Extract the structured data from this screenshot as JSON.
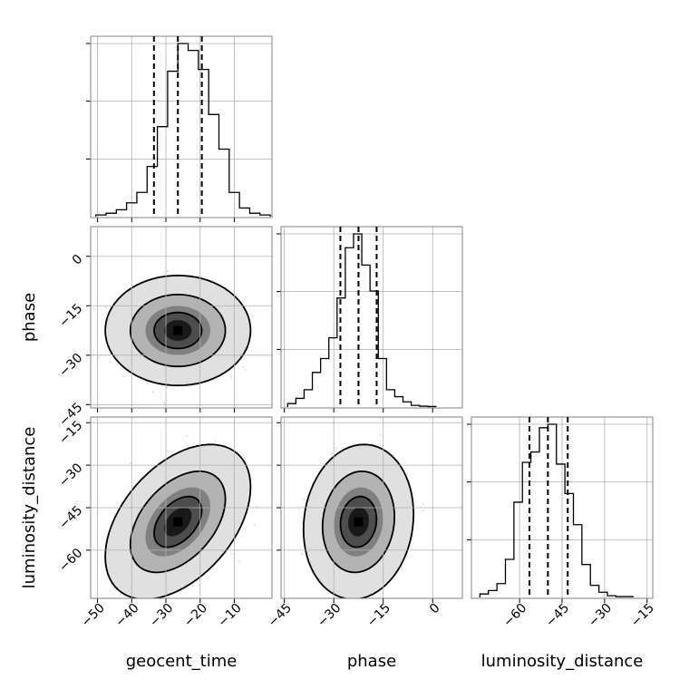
{
  "chart_data": {
    "type": "corner",
    "parameters": [
      {
        "name": "geocent_time",
        "range": [
          -52,
          1
        ],
        "ticks": [
          -50,
          -40,
          -30,
          -20,
          -10
        ],
        "tick_labels": [
          "−50",
          "−40",
          "−30",
          "−20",
          "−10"
        ],
        "quantiles": [
          -33.5,
          -26.5,
          -19.5
        ],
        "hist_bins": [
          -50.5,
          -47.5,
          -44.5,
          -41.5,
          -38.5,
          -35.5,
          -32.5,
          -29.5,
          -26.5,
          -23.5,
          -20.5,
          -17.5,
          -14.5,
          -11.5,
          -8.5,
          -5.5,
          -2.5
        ],
        "hist_counts": [
          0.01,
          0.02,
          0.04,
          0.08,
          0.14,
          0.29,
          0.52,
          0.84,
          1.0,
          0.96,
          0.85,
          0.59,
          0.39,
          0.14,
          0.05,
          0.02,
          0.01
        ]
      },
      {
        "name": "phase",
        "range": [
          -46,
          9
        ],
        "ticks": [
          -45,
          -30,
          -15,
          0
        ],
        "tick_labels": [
          "−45",
          "−30",
          "−15",
          "0"
        ],
        "quantiles": [
          -28,
          -22.5,
          -17
        ],
        "hist_bins": [
          -44,
          -41.5,
          -39,
          -36.5,
          -34,
          -31.5,
          -29,
          -26.5,
          -24,
          -21.5,
          -19,
          -16.5,
          -14,
          -11.5,
          -9,
          -6.5,
          -4,
          -1.5
        ],
        "hist_counts": [
          0.02,
          0.05,
          0.1,
          0.2,
          0.28,
          0.4,
          0.63,
          0.92,
          1.0,
          0.82,
          0.67,
          0.28,
          0.1,
          0.06,
          0.03,
          0.01,
          0.005,
          0.003
        ]
      },
      {
        "name": "luminosity_distance",
        "range": [
          -77,
          -13
        ],
        "ticks": [
          -60,
          -45,
          -30,
          -15
        ],
        "tick_labels": [
          "−60",
          "−45",
          "−30",
          "−15"
        ],
        "quantiles": [
          -56.5,
          -50,
          -43
        ],
        "hist_bins": [
          -74,
          -71,
          -68,
          -65,
          -62,
          -59,
          -56,
          -53,
          -50,
          -47,
          -44,
          -41,
          -38,
          -35,
          -32,
          -29,
          -26,
          -23
        ],
        "hist_counts": [
          0.02,
          0.04,
          0.08,
          0.22,
          0.55,
          0.78,
          0.84,
          0.98,
          1.0,
          0.77,
          0.6,
          0.42,
          0.19,
          0.07,
          0.03,
          0.01,
          0.005,
          0.005
        ]
      }
    ],
    "pairs": [
      {
        "x": "geocent_time",
        "y": "phase",
        "mean": [
          -26.5,
          -22.5
        ],
        "sd": [
          7,
          5.5
        ],
        "rho": 0.0,
        "contour_levels": [
          0.39,
          0.86,
          0.99
        ]
      },
      {
        "x": "geocent_time",
        "y": "luminosity_distance",
        "mean": [
          -26.5,
          -50
        ],
        "sd": [
          7,
          9
        ],
        "rho": 0.45,
        "contour_levels": [
          0.39,
          0.86,
          0.99
        ]
      },
      {
        "x": "phase",
        "y": "luminosity_distance",
        "mean": [
          -22.5,
          -50
        ],
        "sd": [
          5.5,
          9
        ],
        "rho": 0.1,
        "contour_levels": [
          0.39,
          0.86,
          0.99
        ]
      }
    ],
    "scatter_points_per_panel": 1800,
    "grid": true,
    "legend": "none",
    "colors": {
      "line": "#000000",
      "grid": "#b0b0b0",
      "scatter": "#808080",
      "background": "#ffffff"
    }
  }
}
